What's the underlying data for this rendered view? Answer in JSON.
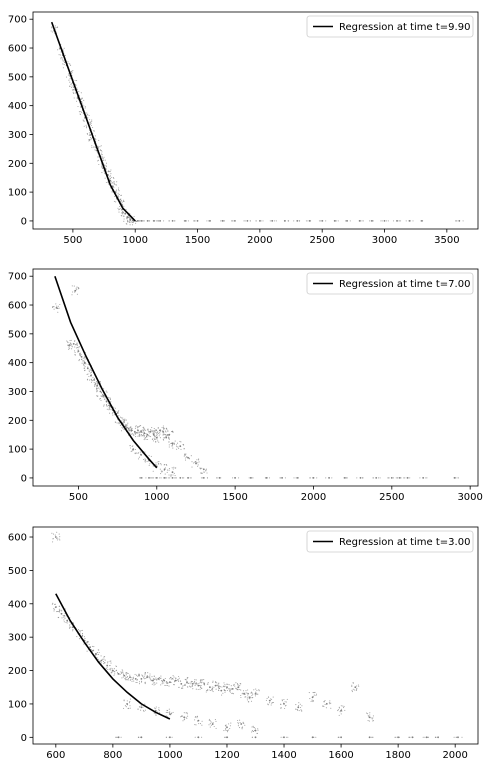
{
  "chart_data": [
    {
      "type": "scatter",
      "xlim": [
        180,
        3750
      ],
      "ylim": [
        -28,
        725
      ],
      "xticks": [
        500,
        1000,
        1500,
        2000,
        2500,
        3000,
        3500
      ],
      "yticks": [
        0,
        100,
        200,
        300,
        400,
        500,
        600,
        700
      ],
      "xtick_labels": [
        "500",
        "1000",
        "1500",
        "2000",
        "2500",
        "3000",
        "3500"
      ],
      "ytick_labels": [
        "0",
        "100",
        "200",
        "300",
        "400",
        "500",
        "600",
        "700"
      ],
      "grid": false,
      "legend": {
        "placement": "top-right",
        "entries": [
          "Regression at time t=9.90"
        ]
      },
      "series": [
        {
          "name": "Regression at time t=9.90",
          "kind": "line",
          "color": "#000000",
          "x": [
            330,
            500,
            600,
            700,
            800,
            900,
            1000
          ],
          "y": [
            690,
            485,
            365,
            245,
            125,
            45,
            0
          ]
        }
      ],
      "scatter_points": {
        "color": "#808080",
        "x": [
          350,
          400,
          420,
          450,
          480,
          500,
          520,
          540,
          560,
          580,
          600,
          620,
          640,
          660,
          680,
          700,
          720,
          740,
          760,
          780,
          800,
          820,
          840,
          860,
          880,
          900,
          920,
          940,
          960,
          980,
          1000,
          1020,
          1050,
          1100,
          1150,
          1200,
          1300,
          1400,
          1500,
          1600,
          1700,
          1800,
          1900,
          2000,
          2100,
          2200,
          2300,
          2400,
          2500,
          2600,
          2700,
          2800,
          2900,
          3000,
          3100,
          3200,
          3300,
          3600
        ],
        "y": [
          660,
          600,
          575,
          540,
          505,
          480,
          455,
          430,
          410,
          385,
          360,
          340,
          315,
          290,
          270,
          245,
          225,
          200,
          180,
          160,
          140,
          120,
          100,
          80,
          60,
          40,
          25,
          12,
          5,
          2,
          0,
          0,
          0,
          0,
          0,
          0,
          0,
          0,
          0,
          0,
          0,
          0,
          0,
          0,
          0,
          0,
          0,
          0,
          0,
          0,
          0,
          0,
          0,
          0,
          0,
          0,
          0,
          0
        ]
      }
    },
    {
      "type": "scatter",
      "xlim": [
        210,
        3050
      ],
      "ylim": [
        -28,
        725
      ],
      "xticks": [
        500,
        1000,
        1500,
        2000,
        2500,
        3000
      ],
      "yticks": [
        0,
        100,
        200,
        300,
        400,
        500,
        600,
        700
      ],
      "xtick_labels": [
        "500",
        "1000",
        "1500",
        "2000",
        "2500",
        "3000"
      ],
      "ytick_labels": [
        "0",
        "100",
        "200",
        "300",
        "400",
        "500",
        "600",
        "700"
      ],
      "grid": false,
      "legend": {
        "placement": "top-right",
        "entries": [
          "Regression at time t=7.00"
        ]
      },
      "series": [
        {
          "name": "Regression at time t=7.00",
          "kind": "line",
          "color": "#000000",
          "x": [
            350,
            450,
            550,
            650,
            750,
            850,
            950,
            1000
          ],
          "y": [
            700,
            540,
            420,
            310,
            210,
            130,
            65,
            35
          ]
        }
      ],
      "scatter_points": {
        "color": "#808080",
        "x": [
          360,
          440,
          470,
          500,
          520,
          540,
          560,
          580,
          600,
          620,
          640,
          660,
          680,
          700,
          720,
          740,
          760,
          780,
          800,
          820,
          840,
          860,
          880,
          900,
          920,
          940,
          960,
          980,
          1000,
          1020,
          1040,
          1060,
          1080,
          1100,
          1150,
          1200,
          1250,
          1300,
          850,
          900,
          950,
          1000,
          1050,
          1100,
          900,
          950,
          1000,
          1050,
          1100,
          1150,
          1200,
          1300,
          1400,
          1500,
          1600,
          1700,
          1800,
          1900,
          2000,
          2100,
          2200,
          2300,
          2400,
          2500,
          2550,
          2600,
          2700,
          2900,
          480
        ],
        "y": [
          590,
          460,
          465,
          440,
          420,
          400,
          380,
          355,
          340,
          320,
          300,
          285,
          265,
          250,
          235,
          220,
          200,
          190,
          180,
          170,
          165,
          160,
          165,
          160,
          155,
          150,
          160,
          150,
          140,
          165,
          160,
          140,
          150,
          120,
          110,
          70,
          50,
          30,
          100,
          80,
          60,
          40,
          30,
          20,
          0,
          0,
          0,
          0,
          0,
          0,
          0,
          0,
          0,
          0,
          0,
          0,
          0,
          0,
          0,
          0,
          0,
          0,
          0,
          0,
          0,
          0,
          0,
          0,
          650
        ]
      }
    },
    {
      "type": "scatter",
      "xlim": [
        520,
        2080
      ],
      "ylim": [
        -20,
        630
      ],
      "xticks": [
        600,
        800,
        1000,
        1200,
        1400,
        1600,
        1800,
        2000
      ],
      "yticks": [
        0,
        100,
        200,
        300,
        400,
        500,
        600
      ],
      "xtick_labels": [
        "600",
        "800",
        "1000",
        "1200",
        "1400",
        "1600",
        "1800",
        "2000"
      ],
      "ytick_labels": [
        "0",
        "100",
        "200",
        "300",
        "400",
        "500",
        "600"
      ],
      "grid": false,
      "legend": {
        "placement": "top-right",
        "entries": [
          "Regression at time t=3.00"
        ]
      },
      "series": [
        {
          "name": "Regression at time t=3.00",
          "kind": "line",
          "color": "#000000",
          "x": [
            600,
            650,
            700,
            750,
            800,
            850,
            900,
            950,
            1000
          ],
          "y": [
            430,
            350,
            285,
            225,
            175,
            135,
            100,
            75,
            55
          ]
        }
      ],
      "scatter_points": {
        "color": "#808080",
        "x": [
          600,
          620,
          640,
          660,
          680,
          700,
          720,
          740,
          760,
          780,
          800,
          820,
          840,
          860,
          880,
          900,
          920,
          940,
          960,
          980,
          1000,
          1020,
          1040,
          1060,
          1080,
          1100,
          1120,
          1140,
          1160,
          1180,
          1200,
          1220,
          1240,
          1260,
          1280,
          1300,
          1350,
          1400,
          1450,
          1500,
          1550,
          1600,
          1650,
          1700,
          850,
          900,
          950,
          1000,
          1050,
          1100,
          1150,
          1200,
          1250,
          1300,
          820,
          900,
          1000,
          1100,
          1200,
          1300,
          1400,
          1500,
          1600,
          1700,
          1800,
          1850,
          1900,
          1940,
          2010,
          600
        ],
        "y": [
          390,
          370,
          350,
          330,
          310,
          290,
          270,
          250,
          230,
          215,
          200,
          190,
          185,
          180,
          175,
          175,
          180,
          170,
          175,
          170,
          165,
          170,
          160,
          165,
          160,
          155,
          160,
          150,
          155,
          140,
          150,
          145,
          150,
          130,
          120,
          130,
          110,
          100,
          90,
          120,
          100,
          80,
          150,
          60,
          100,
          90,
          80,
          70,
          60,
          50,
          40,
          30,
          40,
          20,
          0,
          0,
          0,
          0,
          0,
          0,
          0,
          0,
          0,
          0,
          0,
          0,
          0,
          0,
          0,
          600
        ]
      }
    }
  ]
}
